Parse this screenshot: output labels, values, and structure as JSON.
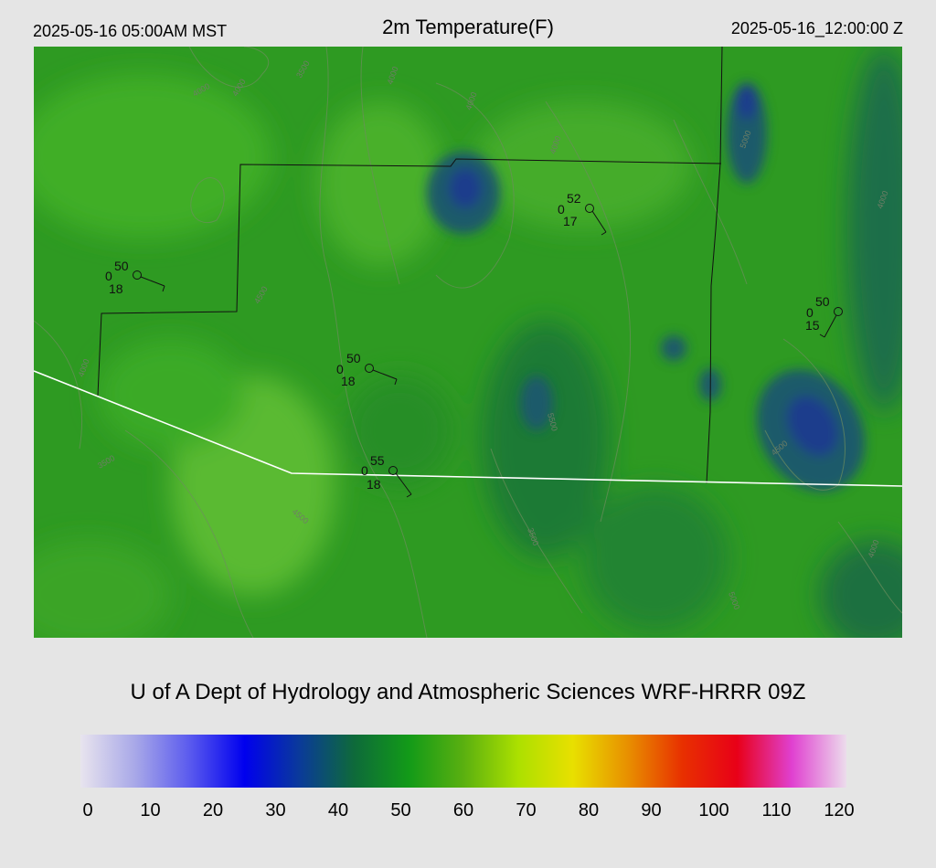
{
  "header": {
    "local_time": "2025-05-16 05:00AM MST",
    "title": "2m Temperature(F)",
    "valid_time": "2025-05-16_12:00:00 Z"
  },
  "credit": "U of A Dept of Hydrology and Atmospheric Sciences WRF-HRRR 09Z",
  "colorbar": {
    "ticks": [
      "0",
      "10",
      "20",
      "30",
      "40",
      "50",
      "60",
      "70",
      "80",
      "90",
      "100",
      "110",
      "120"
    ],
    "colors": [
      "#e8e4ee",
      "#a8a8e8",
      "#5a5aee",
      "#0000ee",
      "#0a3a9a",
      "#0e6a3a",
      "#129a18",
      "#5ab010",
      "#ace000",
      "#e8e000",
      "#e89000",
      "#e83000",
      "#e80018",
      "#e040d0",
      "#ecdcec"
    ]
  },
  "stations": [
    {
      "temp": "50",
      "dew": "0",
      "wind": "18"
    },
    {
      "temp": "52",
      "dew": "0",
      "wind": "17"
    },
    {
      "temp": "50",
      "dew": "0",
      "wind": "18"
    },
    {
      "temp": "55",
      "dew": "0",
      "wind": "18"
    },
    {
      "temp": "50",
      "dew": "0",
      "wind": "15"
    }
  ],
  "contour_labels": [
    "4000",
    "4000",
    "3500",
    "4000",
    "4000",
    "4000",
    "5000",
    "4000",
    "4500",
    "5500",
    "3500",
    "4000",
    "4500",
    "3500",
    "4500",
    "4000",
    "5000"
  ]
}
